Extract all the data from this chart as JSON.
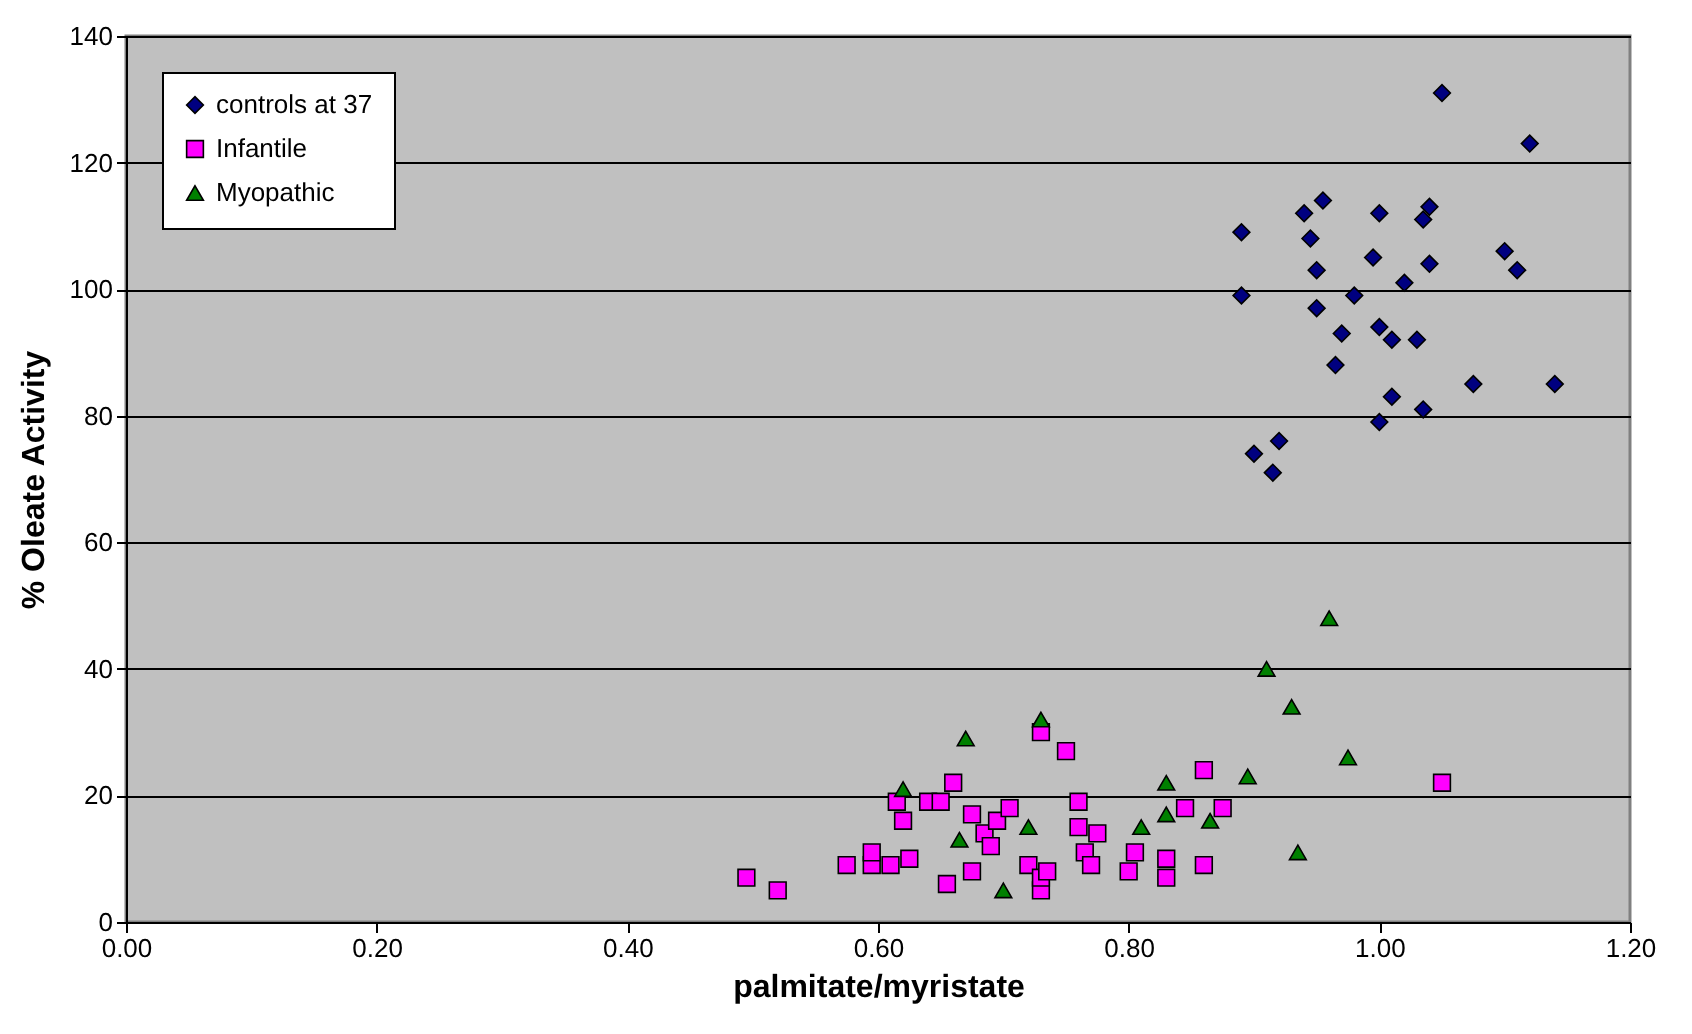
{
  "chart_data": {
    "type": "scatter",
    "xlabel": "palmitate/myristate",
    "ylabel": "% Oleate Activity",
    "xlim": [
      0,
      1.2
    ],
    "xticks": [
      {
        "value": 0,
        "label": "0.00"
      },
      {
        "value": 0.2,
        "label": "0.20"
      },
      {
        "value": 0.4,
        "label": "0.40"
      },
      {
        "value": 0.6,
        "label": "0.60"
      },
      {
        "value": 0.8,
        "label": "0.80"
      },
      {
        "value": 1,
        "label": "1.00"
      },
      {
        "value": 1.2,
        "label": "1.20"
      }
    ],
    "ylim": [
      0,
      140
    ],
    "yticks": [
      0,
      20,
      40,
      60,
      80,
      100,
      120,
      140
    ],
    "grid": "y",
    "legend": "top left",
    "series": [
      {
        "name": "controls at 37",
        "color": "#000080",
        "marker": "diamond",
        "x": [
          1.05,
          1.12,
          0.89,
          0.94,
          0.955,
          1.0,
          1.04,
          1.035,
          0.945,
          0.89,
          0.95,
          1.04,
          0.98,
          0.995,
          1.0,
          0.95,
          1.1,
          1.11,
          0.97,
          1.0,
          1.01,
          1.03,
          1.02,
          0.965,
          1.01,
          1.075,
          1.14,
          1.035,
          0.9,
          0.915,
          0.92
        ],
        "values": [
          131,
          123,
          109,
          112,
          114,
          112,
          113,
          111,
          108,
          99,
          103,
          104,
          99,
          105,
          94,
          97,
          106,
          103,
          93,
          79,
          92,
          92,
          101,
          88,
          83,
          85,
          85,
          81,
          74,
          71,
          76
        ]
      },
      {
        "name": "Infantile",
        "color": "#ff00ff",
        "marker": "square",
        "x": [
          0.495,
          0.52,
          0.575,
          0.595,
          0.595,
          0.61,
          0.615,
          0.62,
          0.625,
          0.64,
          0.65,
          0.655,
          0.66,
          0.675,
          0.675,
          0.685,
          0.69,
          0.695,
          0.705,
          0.72,
          0.73,
          0.73,
          0.73,
          0.735,
          0.75,
          0.76,
          0.76,
          0.765,
          0.77,
          0.775,
          0.8,
          0.805,
          0.83,
          0.83,
          0.845,
          0.86,
          0.86,
          0.875,
          1.05
        ],
        "values": [
          7,
          5,
          9,
          9,
          11,
          9,
          19,
          16,
          10,
          19,
          19,
          6,
          22,
          17,
          8,
          14,
          12,
          16,
          18,
          9,
          5,
          7,
          30,
          8,
          27,
          19,
          15,
          11,
          9,
          14,
          8,
          11,
          7,
          10,
          18,
          24,
          9,
          18,
          22
        ]
      },
      {
        "name": "Myopathic",
        "color": "#008000",
        "marker": "triangle",
        "x": [
          0.62,
          0.665,
          0.67,
          0.7,
          0.72,
          0.73,
          0.83,
          0.83,
          0.81,
          0.865,
          0.895,
          0.91,
          0.93,
          0.96,
          0.935,
          0.975
        ],
        "values": [
          21,
          13,
          29,
          5,
          15,
          32,
          22,
          17,
          15,
          16,
          23,
          40,
          34,
          48,
          11,
          26
        ]
      }
    ]
  }
}
